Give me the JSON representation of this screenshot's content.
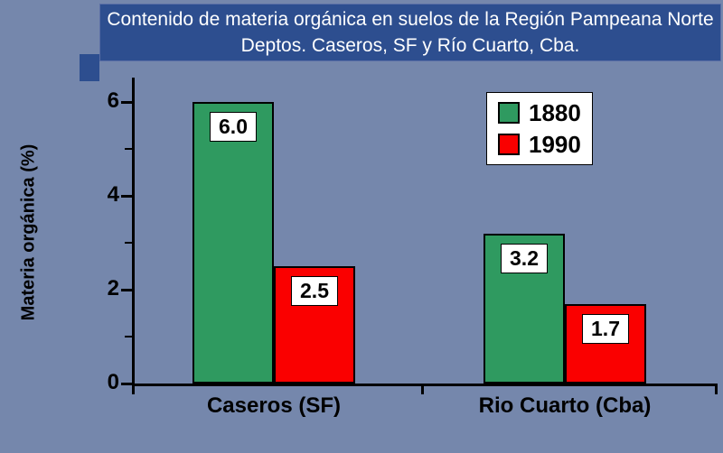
{
  "title": {
    "line1": "Contenido de materia orgánica en suelos de la Región Pampeana Norte",
    "line2": "Deptos. Caseros, SF y Río Cuarto, Cba."
  },
  "chart_data": {
    "type": "bar",
    "title": "Contenido de materia orgánica en suelos de la Región Pampeana Norte — Deptos. Caseros, SF y Río Cuarto, Cba.",
    "categories": [
      "Caseros (SF)",
      "Rio Cuarto (Cba)"
    ],
    "series": [
      {
        "name": "1880",
        "color": "#2f9a60",
        "values": [
          6.0,
          3.2
        ]
      },
      {
        "name": "1990",
        "color": "#fa0000",
        "values": [
          2.5,
          1.7
        ]
      }
    ],
    "value_labels": [
      "6.0",
      "2.5",
      "3.2",
      "1.7"
    ],
    "ylabel": "Materia orgánica (%)",
    "xlabel": "",
    "ylim": [
      0,
      6.5
    ],
    "yticks": [
      0,
      2,
      4,
      6
    ],
    "yticks_minor": [
      1,
      3,
      5
    ],
    "grid": false,
    "legend_position": "top-right",
    "colors": {
      "background": "#7587ac",
      "banner": "#2d4e8f",
      "bar_1880": "#2f9a60",
      "bar_1990": "#fa0000",
      "axis": "#000000",
      "label_box": "#ffffff"
    }
  }
}
